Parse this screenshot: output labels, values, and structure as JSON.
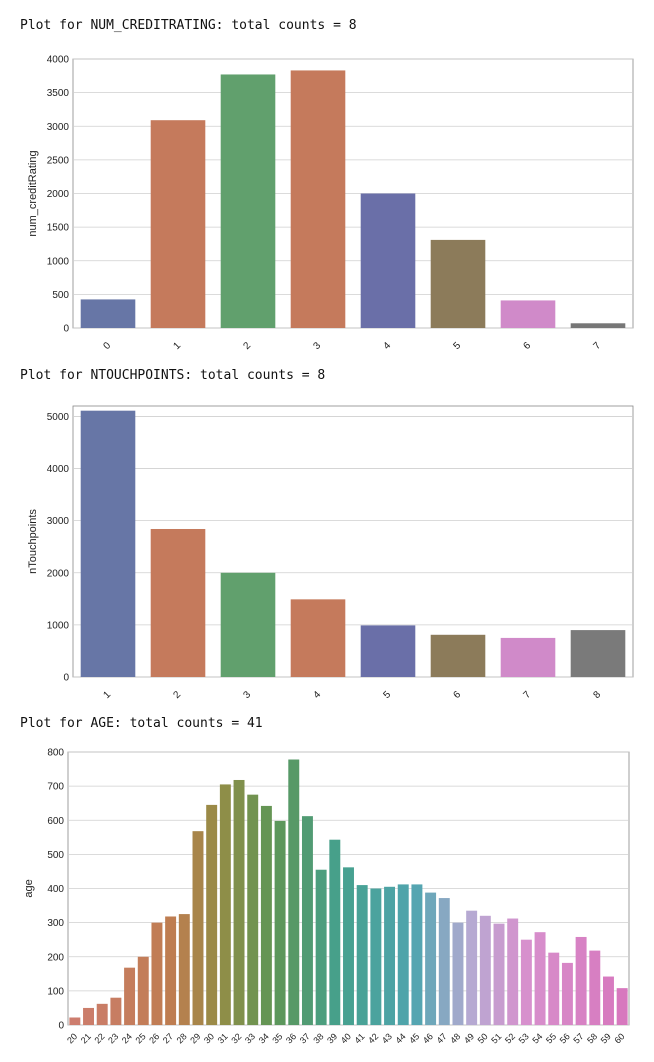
{
  "chart_data": [
    {
      "type": "bar",
      "title": "Plot for NUM_CREDITRATING: total counts = 8",
      "xlabel": "",
      "ylabel": "num_creditRating",
      "categories": [
        "0",
        "1",
        "2",
        "3",
        "4",
        "5",
        "6",
        "7"
      ],
      "values": [
        425,
        3090,
        3770,
        3830,
        2000,
        1310,
        410,
        70
      ],
      "ylim": [
        0,
        4000
      ],
      "yticks": [
        0,
        500,
        1000,
        1500,
        2000,
        2500,
        3000,
        3500,
        4000
      ],
      "grid": true
    },
    {
      "type": "bar",
      "title": "Plot for NTOUCHPOINTS: total counts = 8",
      "xlabel": "",
      "ylabel": "nTouchpoints",
      "categories": [
        "1",
        "2",
        "3",
        "4",
        "5",
        "6",
        "7",
        "8"
      ],
      "values": [
        5110,
        2840,
        2000,
        1490,
        990,
        810,
        750,
        900
      ],
      "ylim": [
        0,
        5200
      ],
      "yticks": [
        0,
        1000,
        2000,
        3000,
        4000,
        5000
      ],
      "grid": true
    },
    {
      "type": "bar",
      "title": "Plot for AGE: total counts = 41",
      "xlabel": "",
      "ylabel": "age",
      "categories": [
        "20",
        "21",
        "22",
        "23",
        "24",
        "25",
        "26",
        "27",
        "28",
        "29",
        "30",
        "31",
        "32",
        "33",
        "34",
        "35",
        "36",
        "37",
        "38",
        "39",
        "40",
        "41",
        "42",
        "43",
        "44",
        "45",
        "46",
        "47",
        "48",
        "49",
        "50",
        "51",
        "52",
        "53",
        "54",
        "55",
        "56",
        "57",
        "58",
        "59",
        "60"
      ],
      "values": [
        22,
        50,
        62,
        80,
        168,
        200,
        300,
        318,
        325,
        568,
        645,
        705,
        718,
        675,
        642,
        598,
        778,
        612,
        455,
        543,
        462,
        410,
        400,
        405,
        412,
        412,
        388,
        372,
        300,
        335,
        320,
        297,
        312,
        250,
        272,
        212,
        182,
        258,
        218,
        142,
        108
      ],
      "ylim": [
        0,
        800
      ],
      "yticks": [
        0,
        100,
        200,
        300,
        400,
        500,
        600,
        700,
        800
      ],
      "grid": true
    }
  ],
  "colors": {
    "palette_deep": [
      "#6776a6",
      "#c57a5c",
      "#61a06d",
      "#c57a5c",
      "#6a6fa8",
      "#8c7b5a",
      "#d08ac9",
      "#777777",
      "#7a7a7a"
    ],
    "grid": "#cfcfcf",
    "axis": "#888888"
  }
}
